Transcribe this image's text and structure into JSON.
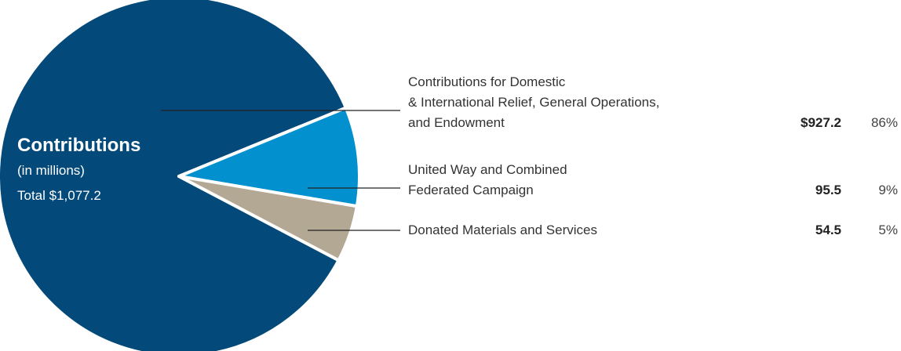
{
  "center": {
    "title": "Contributions",
    "subtitle": "(in millions)",
    "total": "Total $1,077.2"
  },
  "colors": [
    "#03497a",
    "#0291ce",
    "#b3a894"
  ],
  "chart_data": {
    "type": "pie",
    "title": "Contributions",
    "subtitle": "(in millions)",
    "total": "$1,077.2",
    "slices": [
      {
        "label_lines": [
          "Contributions for Domestic",
          "& International Relief, General Operations,",
          "and Endowment"
        ],
        "value": 927.2,
        "value_label": "$927.2",
        "percent": 86,
        "percent_label": "86%",
        "color": "#03497a"
      },
      {
        "label_lines": [
          "United Way and Combined",
          "Federated Campaign"
        ],
        "value": 95.5,
        "value_label": "95.5",
        "percent": 9,
        "percent_label": "9%",
        "color": "#0291ce"
      },
      {
        "label_lines": [
          "Donated Materials and Services"
        ],
        "value": 54.5,
        "value_label": "54.5",
        "percent": 5,
        "percent_label": "5%",
        "color": "#b3a894"
      }
    ]
  }
}
